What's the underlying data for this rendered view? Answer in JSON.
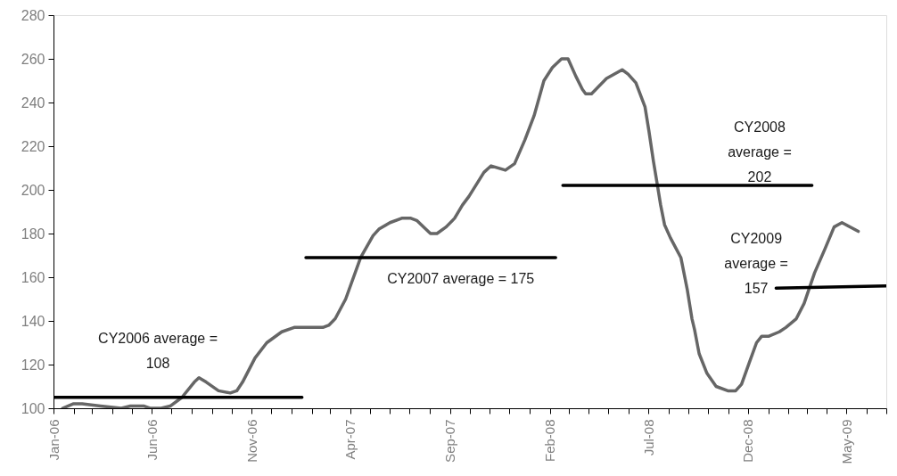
{
  "chart_data": {
    "type": "line",
    "x": [
      "2006-01-15",
      "2006-01-31",
      "2006-02-14",
      "2006-03-14",
      "2006-04-15",
      "2006-04-29",
      "2006-05-20",
      "2006-05-29",
      "2006-06-15",
      "2006-06-29",
      "2006-07-17",
      "2006-08-05",
      "2006-08-12",
      "2006-08-23",
      "2006-09-11",
      "2006-09-29",
      "2006-10-09",
      "2006-10-18",
      "2006-11-06",
      "2006-11-24",
      "2006-12-17",
      "2007-01-05",
      "2007-02-18",
      "2007-02-27",
      "2007-03-09",
      "2007-03-25",
      "2007-04-17",
      "2007-05-06",
      "2007-05-15",
      "2007-06-01",
      "2007-06-19",
      "2007-07-03",
      "2007-07-12",
      "2007-08-02",
      "2007-08-12",
      "2007-08-26",
      "2007-09-08",
      "2007-09-20",
      "2007-09-30",
      "2007-10-23",
      "2007-11-03",
      "2007-11-25",
      "2007-12-09",
      "2007-12-25",
      "2008-01-08",
      "2008-01-23",
      "2008-02-05",
      "2008-02-19",
      "2008-02-29",
      "2008-03-12",
      "2008-03-22",
      "2008-03-27",
      "2008-04-05",
      "2008-04-28",
      "2008-05-22",
      "2008-05-31",
      "2008-06-12",
      "2008-06-26",
      "2008-07-02",
      "2008-07-09",
      "2008-07-14",
      "2008-07-20",
      "2008-07-26",
      "2008-08-04",
      "2008-08-20",
      "2008-08-30",
      "2008-09-06",
      "2008-09-10",
      "2008-09-17",
      "2008-09-29",
      "2008-10-13",
      "2008-10-31",
      "2008-11-12",
      "2008-11-21",
      "2008-12-03",
      "2008-12-14",
      "2008-12-22",
      "2009-01-02",
      "2009-01-18",
      "2009-01-28",
      "2009-02-13",
      "2009-02-25",
      "2009-03-13",
      "2009-03-29",
      "2009-04-12",
      "2009-04-24",
      "2009-05-19"
    ],
    "series": [
      {
        "color": "#666666",
        "values": [
          100,
          102,
          102,
          101,
          100,
          101,
          101,
          100,
          100,
          101,
          105,
          112,
          114,
          112,
          108,
          107,
          108,
          112,
          123,
          130,
          135,
          137,
          137,
          138,
          141,
          150,
          169,
          179,
          182,
          185,
          187,
          187,
          186,
          180,
          180,
          183,
          187,
          193,
          197,
          208,
          211,
          209,
          212,
          223,
          234,
          250,
          256,
          260,
          260,
          252,
          246,
          244,
          244,
          251,
          255,
          253,
          249,
          238,
          227,
          213,
          204,
          193,
          184,
          178,
          169,
          154,
          141,
          136,
          125,
          116,
          110,
          108,
          108,
          111,
          121,
          130,
          133,
          133,
          135,
          137,
          141,
          148,
          162,
          173,
          183,
          185,
          181
        ]
      },
      {
        "name": "CY2006 average =\n108",
        "color": "#000000",
        "x": [
          "2006-01-01",
          "2007-01-17"
        ],
        "values": [
          105,
          105
        ]
      },
      {
        "name": "CY2007 average = 175",
        "color": "#000000",
        "x": [
          "2007-01-23",
          "2008-02-10"
        ],
        "values": [
          169,
          169
        ]
      },
      {
        "name": "CY2008\naverage =\n202",
        "color": "#000000",
        "x": [
          "2008-02-21",
          "2009-03-09"
        ],
        "values": [
          202,
          202
        ]
      },
      {
        "name": "CY2009\naverage =\n157",
        "color": "#000000",
        "x": [
          "2009-01-13",
          "2009-07-01"
        ],
        "values": [
          155,
          156
        ]
      }
    ],
    "xlim": [
      "2006-01-01",
      "2009-07-01"
    ],
    "xticks": [
      {
        "value": "2006-01-01",
        "label": "Jan-06"
      },
      {
        "value": "2006-02-01",
        "label": null
      },
      {
        "value": "2006-03-01",
        "label": null
      },
      {
        "value": "2006-04-01",
        "label": null
      },
      {
        "value": "2006-05-01",
        "label": null
      },
      {
        "value": "2006-06-01",
        "label": "Jun-06"
      },
      {
        "value": "2006-07-01",
        "label": null
      },
      {
        "value": "2006-08-01",
        "label": null
      },
      {
        "value": "2006-09-01",
        "label": null
      },
      {
        "value": "2006-10-01",
        "label": null
      },
      {
        "value": "2006-11-01",
        "label": "Nov-06"
      },
      {
        "value": "2006-12-01",
        "label": null
      },
      {
        "value": "2007-01-01",
        "label": null
      },
      {
        "value": "2007-02-01",
        "label": null
      },
      {
        "value": "2007-03-01",
        "label": null
      },
      {
        "value": "2007-04-01",
        "label": "Apr-07"
      },
      {
        "value": "2007-05-01",
        "label": null
      },
      {
        "value": "2007-06-01",
        "label": null
      },
      {
        "value": "2007-07-01",
        "label": null
      },
      {
        "value": "2007-08-01",
        "label": null
      },
      {
        "value": "2007-09-01",
        "label": "Sep-07"
      },
      {
        "value": "2007-10-01",
        "label": null
      },
      {
        "value": "2007-11-01",
        "label": null
      },
      {
        "value": "2007-12-01",
        "label": null
      },
      {
        "value": "2008-01-01",
        "label": null
      },
      {
        "value": "2008-02-01",
        "label": "Feb-08"
      },
      {
        "value": "2008-03-01",
        "label": null
      },
      {
        "value": "2008-04-01",
        "label": null
      },
      {
        "value": "2008-05-01",
        "label": null
      },
      {
        "value": "2008-06-01",
        "label": null
      },
      {
        "value": "2008-07-01",
        "label": "Jul-08"
      },
      {
        "value": "2008-08-01",
        "label": null
      },
      {
        "value": "2008-09-01",
        "label": null
      },
      {
        "value": "2008-10-01",
        "label": null
      },
      {
        "value": "2008-11-01",
        "label": null
      },
      {
        "value": "2008-12-01",
        "label": "Dec-08"
      },
      {
        "value": "2009-01-01",
        "label": null
      },
      {
        "value": "2009-02-01",
        "label": null
      },
      {
        "value": "2009-03-01",
        "label": null
      },
      {
        "value": "2009-04-01",
        "label": null
      },
      {
        "value": "2009-05-01",
        "label": "May-09"
      },
      {
        "value": "2009-06-01",
        "label": null
      },
      {
        "value": "2009-07-01",
        "label": null
      }
    ],
    "ylim": [
      100,
      280
    ],
    "yticks": [
      100,
      120,
      140,
      160,
      180,
      200,
      220,
      240,
      260,
      280
    ],
    "grid": false
  }
}
